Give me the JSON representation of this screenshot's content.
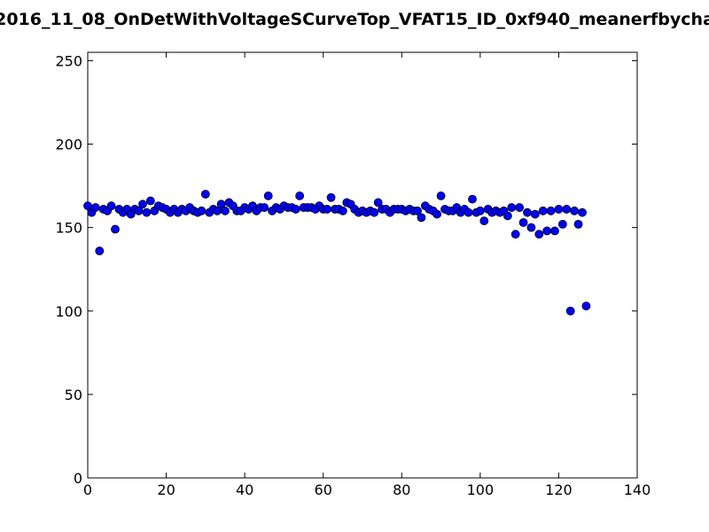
{
  "chart_data": {
    "type": "scatter",
    "title": "2016_11_08_OnDetWithVoltageSCurveTop_VFAT15_ID_0xf940_meanerfbycha",
    "xlabel": "",
    "ylabel": "",
    "xlim": [
      0,
      140
    ],
    "ylim": [
      0,
      255
    ],
    "x_ticks": [
      "0",
      "20",
      "40",
      "60",
      "80",
      "100",
      "120",
      "140"
    ],
    "y_ticks": [
      "0",
      "50",
      "100",
      "150",
      "200",
      "250"
    ],
    "grid": false,
    "legend": "none",
    "marker_color": "#0000ff",
    "marker_edge_color": "#000000",
    "points": [
      [
        0,
        163
      ],
      [
        1,
        159
      ],
      [
        2,
        162
      ],
      [
        3,
        136
      ],
      [
        4,
        161
      ],
      [
        5,
        160
      ],
      [
        6,
        163
      ],
      [
        7,
        149
      ],
      [
        8,
        161
      ],
      [
        9,
        159
      ],
      [
        10,
        161
      ],
      [
        11,
        158
      ],
      [
        12,
        161
      ],
      [
        13,
        160
      ],
      [
        14,
        164
      ],
      [
        15,
        159
      ],
      [
        16,
        166
      ],
      [
        17,
        160
      ],
      [
        18,
        163
      ],
      [
        19,
        162
      ],
      [
        20,
        161
      ],
      [
        21,
        159
      ],
      [
        22,
        161
      ],
      [
        23,
        159
      ],
      [
        24,
        161
      ],
      [
        25,
        160
      ],
      [
        26,
        162
      ],
      [
        27,
        160
      ],
      [
        28,
        159
      ],
      [
        29,
        160
      ],
      [
        30,
        170
      ],
      [
        31,
        159
      ],
      [
        32,
        161
      ],
      [
        33,
        160
      ],
      [
        34,
        164
      ],
      [
        35,
        160
      ],
      [
        36,
        165
      ],
      [
        37,
        163
      ],
      [
        38,
        160
      ],
      [
        39,
        160
      ],
      [
        40,
        162
      ],
      [
        41,
        161
      ],
      [
        42,
        163
      ],
      [
        43,
        160
      ],
      [
        44,
        162
      ],
      [
        45,
        162
      ],
      [
        46,
        169
      ],
      [
        47,
        160
      ],
      [
        48,
        162
      ],
      [
        49,
        161
      ],
      [
        50,
        163
      ],
      [
        51,
        162
      ],
      [
        52,
        162
      ],
      [
        53,
        161
      ],
      [
        54,
        169
      ],
      [
        55,
        162
      ],
      [
        56,
        162
      ],
      [
        57,
        162
      ],
      [
        58,
        161
      ],
      [
        59,
        163
      ],
      [
        60,
        161
      ],
      [
        61,
        161
      ],
      [
        62,
        168
      ],
      [
        63,
        161
      ],
      [
        64,
        161
      ],
      [
        65,
        160
      ],
      [
        66,
        165
      ],
      [
        67,
        164
      ],
      [
        68,
        161
      ],
      [
        69,
        159
      ],
      [
        70,
        160
      ],
      [
        71,
        159
      ],
      [
        72,
        160
      ],
      [
        73,
        159
      ],
      [
        74,
        165
      ],
      [
        75,
        161
      ],
      [
        76,
        161
      ],
      [
        77,
        159
      ],
      [
        78,
        161
      ],
      [
        79,
        161
      ],
      [
        80,
        161
      ],
      [
        81,
        160
      ],
      [
        82,
        161
      ],
      [
        83,
        160
      ],
      [
        84,
        160
      ],
      [
        85,
        156
      ],
      [
        86,
        163
      ],
      [
        87,
        161
      ],
      [
        88,
        160
      ],
      [
        89,
        158
      ],
      [
        90,
        169
      ],
      [
        91,
        161
      ],
      [
        92,
        160
      ],
      [
        93,
        160
      ],
      [
        94,
        162
      ],
      [
        95,
        159
      ],
      [
        96,
        161
      ],
      [
        97,
        159
      ],
      [
        98,
        167
      ],
      [
        99,
        159
      ],
      [
        100,
        160
      ],
      [
        101,
        154
      ],
      [
        102,
        161
      ],
      [
        103,
        159
      ],
      [
        104,
        160
      ],
      [
        105,
        159
      ],
      [
        106,
        160
      ],
      [
        107,
        157
      ],
      [
        108,
        162
      ],
      [
        109,
        146
      ],
      [
        110,
        162
      ],
      [
        111,
        153
      ],
      [
        112,
        159
      ],
      [
        113,
        150
      ],
      [
        114,
        158
      ],
      [
        115,
        146
      ],
      [
        116,
        160
      ],
      [
        117,
        148
      ],
      [
        118,
        160
      ],
      [
        119,
        148
      ],
      [
        120,
        161
      ],
      [
        121,
        152
      ],
      [
        122,
        161
      ],
      [
        123,
        100
      ],
      [
        124,
        160
      ],
      [
        125,
        152
      ],
      [
        126,
        159
      ],
      [
        127,
        103
      ]
    ]
  }
}
